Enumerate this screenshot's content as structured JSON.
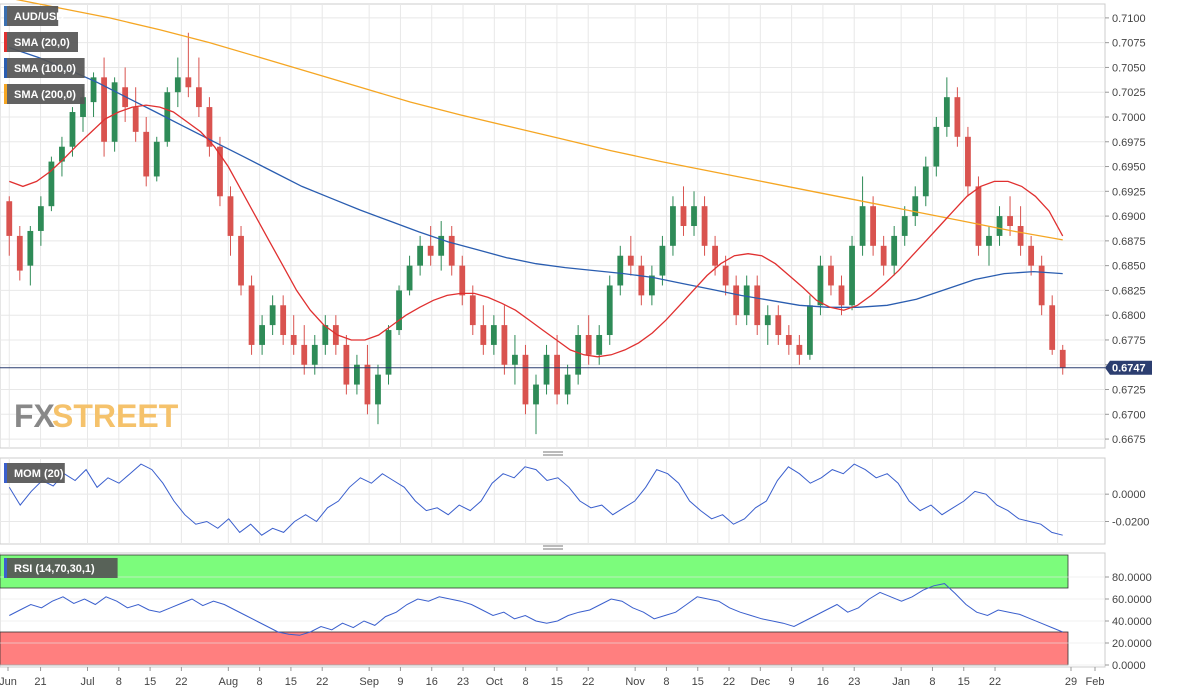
{
  "chart_data": [
    {
      "id": "main",
      "type": "candlestick",
      "legend": [
        {
          "label": "AUD/USD",
          "color": "#3a6fb0"
        },
        {
          "label": "SMA (20,0)",
          "color": "#e03030"
        },
        {
          "label": "SMA (100,0)",
          "color": "#2a5db0"
        },
        {
          "label": "SMA (200,0)",
          "color": "#f5a623"
        }
      ],
      "y_ticks": [
        "0.7100",
        "0.7075",
        "0.7050",
        "0.7025",
        "0.7000",
        "0.6975",
        "0.6950",
        "0.6925",
        "0.6900",
        "0.6875",
        "0.6850",
        "0.6825",
        "0.6800",
        "0.6775",
        "0.6750",
        "0.6725",
        "0.6700",
        "0.6675"
      ],
      "ylim": [
        0.6668,
        0.7112
      ],
      "last_price": "0.6747",
      "last_price_value": 0.6747,
      "candles": [
        [
          0.6915,
          0.692,
          0.686,
          0.688
        ],
        [
          0.688,
          0.689,
          0.6835,
          0.6845
        ],
        [
          0.685,
          0.689,
          0.683,
          0.6885
        ],
        [
          0.6885,
          0.692,
          0.687,
          0.691
        ],
        [
          0.691,
          0.696,
          0.6905,
          0.6955
        ],
        [
          0.6955,
          0.698,
          0.694,
          0.697
        ],
        [
          0.697,
          0.701,
          0.696,
          0.7005
        ],
        [
          0.7,
          0.703,
          0.6985,
          0.702
        ],
        [
          0.7015,
          0.7045,
          0.7,
          0.704
        ],
        [
          0.704,
          0.706,
          0.696,
          0.6975
        ],
        [
          0.6975,
          0.704,
          0.6965,
          0.7035
        ],
        [
          0.703,
          0.705,
          0.6995,
          0.701
        ],
        [
          0.701,
          0.703,
          0.6975,
          0.6985
        ],
        [
          0.6985,
          0.7,
          0.693,
          0.694
        ],
        [
          0.694,
          0.698,
          0.6935,
          0.6975
        ],
        [
          0.6975,
          0.703,
          0.697,
          0.7025
        ],
        [
          0.7025,
          0.706,
          0.701,
          0.704
        ],
        [
          0.704,
          0.7085,
          0.702,
          0.703
        ],
        [
          0.703,
          0.706,
          0.7,
          0.701
        ],
        [
          0.701,
          0.702,
          0.696,
          0.697
        ],
        [
          0.697,
          0.698,
          0.691,
          0.692
        ],
        [
          0.692,
          0.693,
          0.686,
          0.688
        ],
        [
          0.688,
          0.689,
          0.682,
          0.683
        ],
        [
          0.683,
          0.684,
          0.676,
          0.677
        ],
        [
          0.677,
          0.68,
          0.676,
          0.679
        ],
        [
          0.679,
          0.682,
          0.678,
          0.681
        ],
        [
          0.681,
          0.682,
          0.677,
          0.678
        ],
        [
          0.678,
          0.68,
          0.676,
          0.677
        ],
        [
          0.677,
          0.679,
          0.674,
          0.675
        ],
        [
          0.675,
          0.678,
          0.674,
          0.677
        ],
        [
          0.677,
          0.68,
          0.676,
          0.679
        ],
        [
          0.679,
          0.68,
          0.676,
          0.677
        ],
        [
          0.677,
          0.678,
          0.672,
          0.673
        ],
        [
          0.673,
          0.676,
          0.672,
          0.675
        ],
        [
          0.675,
          0.677,
          0.67,
          0.671
        ],
        [
          0.671,
          0.675,
          0.669,
          0.674
        ],
        [
          0.674,
          0.679,
          0.673,
          0.6785
        ],
        [
          0.6785,
          0.683,
          0.678,
          0.6825
        ],
        [
          0.6825,
          0.686,
          0.682,
          0.685
        ],
        [
          0.685,
          0.688,
          0.684,
          0.687
        ],
        [
          0.687,
          0.689,
          0.685,
          0.686
        ],
        [
          0.686,
          0.6895,
          0.6845,
          0.688
        ],
        [
          0.688,
          0.689,
          0.684,
          0.685
        ],
        [
          0.685,
          0.686,
          0.681,
          0.682
        ],
        [
          0.682,
          0.683,
          0.678,
          0.679
        ],
        [
          0.679,
          0.681,
          0.676,
          0.677
        ],
        [
          0.677,
          0.68,
          0.676,
          0.679
        ],
        [
          0.679,
          0.681,
          0.674,
          0.675
        ],
        [
          0.675,
          0.678,
          0.673,
          0.676
        ],
        [
          0.676,
          0.677,
          0.67,
          0.671
        ],
        [
          0.671,
          0.674,
          0.668,
          0.673
        ],
        [
          0.673,
          0.677,
          0.672,
          0.676
        ],
        [
          0.676,
          0.678,
          0.671,
          0.672
        ],
        [
          0.672,
          0.675,
          0.671,
          0.674
        ],
        [
          0.674,
          0.679,
          0.673,
          0.678
        ],
        [
          0.678,
          0.68,
          0.675,
          0.676
        ],
        [
          0.676,
          0.679,
          0.675,
          0.678
        ],
        [
          0.678,
          0.684,
          0.677,
          0.683
        ],
        [
          0.683,
          0.687,
          0.682,
          0.686
        ],
        [
          0.686,
          0.688,
          0.684,
          0.685
        ],
        [
          0.685,
          0.686,
          0.681,
          0.682
        ],
        [
          0.682,
          0.685,
          0.681,
          0.684
        ],
        [
          0.684,
          0.688,
          0.683,
          0.687
        ],
        [
          0.687,
          0.692,
          0.686,
          0.691
        ],
        [
          0.691,
          0.693,
          0.688,
          0.689
        ],
        [
          0.689,
          0.6925,
          0.688,
          0.691
        ],
        [
          0.691,
          0.692,
          0.686,
          0.687
        ],
        [
          0.687,
          0.688,
          0.684,
          0.685
        ],
        [
          0.685,
          0.686,
          0.682,
          0.683
        ],
        [
          0.683,
          0.684,
          0.679,
          0.68
        ],
        [
          0.68,
          0.684,
          0.679,
          0.683
        ],
        [
          0.683,
          0.684,
          0.678,
          0.679
        ],
        [
          0.679,
          0.681,
          0.677,
          0.68
        ],
        [
          0.68,
          0.681,
          0.677,
          0.678
        ],
        [
          0.678,
          0.679,
          0.676,
          0.677
        ],
        [
          0.677,
          0.678,
          0.675,
          0.676
        ],
        [
          0.676,
          0.682,
          0.6755,
          0.681
        ],
        [
          0.681,
          0.686,
          0.68,
          0.685
        ],
        [
          0.685,
          0.686,
          0.682,
          0.683
        ],
        [
          0.683,
          0.684,
          0.68,
          0.681
        ],
        [
          0.681,
          0.688,
          0.6805,
          0.687
        ],
        [
          0.687,
          0.694,
          0.686,
          0.691
        ],
        [
          0.691,
          0.692,
          0.686,
          0.687
        ],
        [
          0.687,
          0.688,
          0.684,
          0.685
        ],
        [
          0.685,
          0.689,
          0.684,
          0.688
        ],
        [
          0.688,
          0.691,
          0.687,
          0.69
        ],
        [
          0.69,
          0.693,
          0.689,
          0.692
        ],
        [
          0.692,
          0.696,
          0.691,
          0.695
        ],
        [
          0.695,
          0.7,
          0.694,
          0.699
        ],
        [
          0.699,
          0.704,
          0.698,
          0.702
        ],
        [
          0.702,
          0.703,
          0.697,
          0.698
        ],
        [
          0.698,
          0.699,
          0.692,
          0.693
        ],
        [
          0.693,
          0.694,
          0.686,
          0.687
        ],
        [
          0.687,
          0.689,
          0.685,
          0.688
        ],
        [
          0.688,
          0.691,
          0.687,
          0.69
        ],
        [
          0.69,
          0.692,
          0.688,
          0.689
        ],
        [
          0.689,
          0.691,
          0.686,
          0.687
        ],
        [
          0.687,
          0.688,
          0.684,
          0.685
        ],
        [
          0.685,
          0.686,
          0.68,
          0.681
        ],
        [
          0.681,
          0.682,
          0.676,
          0.6765
        ],
        [
          0.6765,
          0.677,
          0.674,
          0.6747
        ]
      ],
      "sma20": [
        0.6935,
        0.693,
        0.6935,
        0.6945,
        0.6958,
        0.6972,
        0.6985,
        0.6998,
        0.7005,
        0.701,
        0.7012,
        0.701,
        0.7005,
        0.6995,
        0.6985,
        0.697,
        0.695,
        0.6925,
        0.69,
        0.6875,
        0.685,
        0.6825,
        0.6805,
        0.679,
        0.678,
        0.6775,
        0.6775,
        0.678,
        0.679,
        0.68,
        0.6808,
        0.6815,
        0.682,
        0.6822,
        0.6822,
        0.6818,
        0.6812,
        0.6805,
        0.6795,
        0.6785,
        0.6775,
        0.6765,
        0.676,
        0.6758,
        0.676,
        0.6765,
        0.6772,
        0.6782,
        0.6795,
        0.681,
        0.6825,
        0.684,
        0.6852,
        0.686,
        0.6862,
        0.686,
        0.6852,
        0.684,
        0.6828,
        0.6815,
        0.6808,
        0.6805,
        0.681,
        0.682,
        0.6832,
        0.6845,
        0.686,
        0.6875,
        0.689,
        0.6905,
        0.692,
        0.693,
        0.6935,
        0.6935,
        0.693,
        0.692,
        0.6905,
        0.688
      ],
      "sma100": [
        0.707,
        0.706,
        0.7048,
        0.7035,
        0.702,
        0.7005,
        0.699,
        0.6975,
        0.696,
        0.6945,
        0.693,
        0.6918,
        0.6906,
        0.6895,
        0.6884,
        0.6874,
        0.6866,
        0.6858,
        0.6852,
        0.6848,
        0.6845,
        0.6842,
        0.6838,
        0.6832,
        0.6826,
        0.682,
        0.6815,
        0.681,
        0.6808,
        0.6808,
        0.681,
        0.6816,
        0.6826,
        0.6836,
        0.6842,
        0.6844,
        0.6842
      ],
      "sma200": [
        0.712,
        0.711,
        0.71,
        0.7088,
        0.7075,
        0.706,
        0.7045,
        0.703,
        0.7015,
        0.7002,
        0.699,
        0.6978,
        0.6966,
        0.6955,
        0.6945,
        0.6935,
        0.6925,
        0.6915,
        0.6905,
        0.6895,
        0.6885,
        0.6876
      ]
    },
    {
      "id": "momentum",
      "type": "line",
      "legend": [
        {
          "label": "MOM (20)",
          "color": "#3a5fcd"
        }
      ],
      "y_ticks": [
        "0.0000",
        "-0.0200"
      ],
      "ylim": [
        -0.035,
        0.025
      ],
      "values": [
        0.005,
        -0.008,
        0.002,
        0.01,
        0.006,
        0.015,
        0.01,
        0.018,
        0.005,
        0.012,
        0.008,
        0.015,
        0.022,
        0.018,
        0.008,
        -0.005,
        -0.015,
        -0.022,
        -0.02,
        -0.025,
        -0.018,
        -0.028,
        -0.022,
        -0.03,
        -0.025,
        -0.028,
        -0.02,
        -0.015,
        -0.02,
        -0.01,
        -0.005,
        0.005,
        0.012,
        0.008,
        0.015,
        0.01,
        0.005,
        -0.005,
        -0.012,
        -0.01,
        -0.015,
        -0.008,
        -0.012,
        -0.005,
        0.008,
        0.015,
        0.012,
        0.02,
        0.018,
        0.01,
        0.012,
        0.005,
        -0.005,
        -0.01,
        -0.008,
        -0.015,
        -0.01,
        -0.005,
        0.005,
        0.018,
        0.015,
        0.008,
        -0.005,
        -0.012,
        -0.018,
        -0.015,
        -0.022,
        -0.018,
        -0.01,
        -0.005,
        0.01,
        0.02,
        0.015,
        0.008,
        0.012,
        0.018,
        0.015,
        0.022,
        0.018,
        0.012,
        0.015,
        0.008,
        -0.005,
        -0.012,
        -0.008,
        -0.015,
        -0.01,
        -0.005,
        0.002,
        0.0,
        -0.008,
        -0.012,
        -0.018,
        -0.02,
        -0.022,
        -0.028,
        -0.03
      ]
    },
    {
      "id": "rsi",
      "type": "line",
      "legend": [
        {
          "label": "RSI (14,70,30,1)",
          "color": "#3a5fcd"
        }
      ],
      "y_ticks": [
        "80.0000",
        "60.0000",
        "40.0000",
        "20.0000",
        "0.0000"
      ],
      "ylim": [
        0,
        100
      ],
      "overbought": 70,
      "oversold": 30,
      "values": [
        45,
        50,
        55,
        52,
        58,
        62,
        56,
        60,
        55,
        62,
        58,
        52,
        55,
        50,
        48,
        52,
        56,
        60,
        54,
        58,
        55,
        50,
        45,
        40,
        35,
        30,
        28,
        27,
        30,
        35,
        32,
        38,
        34,
        40,
        36,
        44,
        48,
        55,
        60,
        58,
        62,
        60,
        58,
        55,
        50,
        45,
        48,
        42,
        45,
        40,
        38,
        40,
        45,
        48,
        50,
        55,
        60,
        58,
        52,
        48,
        42,
        45,
        48,
        55,
        62,
        60,
        58,
        52,
        48,
        45,
        42,
        40,
        38,
        35,
        40,
        45,
        50,
        55,
        48,
        52,
        60,
        66,
        62,
        58,
        62,
        68,
        72,
        74,
        65,
        55,
        48,
        45,
        50,
        48,
        46,
        42,
        38,
        34,
        30
      ]
    }
  ],
  "x_axis": {
    "labels": [
      "Jun",
      "21",
      "Jul",
      "8",
      "15",
      "22",
      "Aug",
      "8",
      "15",
      "22",
      "Sep",
      "9",
      "16",
      "23",
      "Oct",
      "8",
      "15",
      "22",
      "Nov",
      "8",
      "15",
      "22",
      "Dec",
      "9",
      "16",
      "23",
      "Jan",
      "8",
      "15",
      "22",
      "29",
      "Feb"
    ],
    "positions": [
      0,
      2,
      5,
      7,
      9,
      11,
      14,
      16,
      18,
      20,
      23,
      25,
      27,
      29,
      31,
      33,
      35,
      37,
      40,
      42,
      44,
      46,
      48,
      50,
      52,
      54,
      57,
      59,
      61,
      63,
      65,
      67
    ]
  },
  "colors": {
    "bull": "#2e8b57",
    "bear": "#d9534f",
    "sma20": "#e03030",
    "sma100": "#2a5db0",
    "sma200": "#f5a623",
    "indicator": "#3a5fcd",
    "price_line": "#2c3e70",
    "rsi_overbought_fill": "#7cfc7c",
    "rsi_oversold_fill": "#ff7f7f",
    "grid": "#e8e8e8"
  },
  "watermark": {
    "text_dark": "FX",
    "text_light": "STREET"
  }
}
